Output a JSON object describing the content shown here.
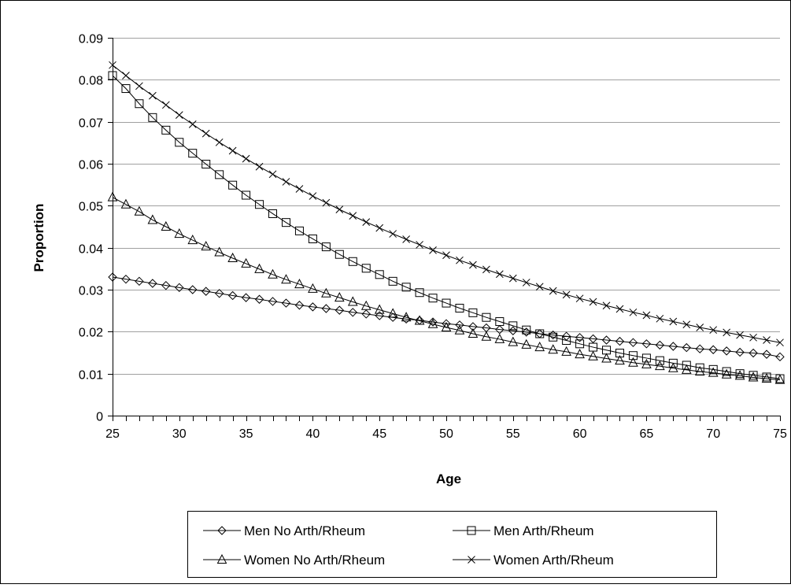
{
  "chart_data": {
    "type": "line",
    "title": "",
    "xlabel": "Age",
    "ylabel": "Proportion",
    "xlim": [
      25,
      75
    ],
    "ylim": [
      0,
      0.09
    ],
    "x_ticks": [
      "25",
      "30",
      "35",
      "40",
      "45",
      "50",
      "55",
      "60",
      "65",
      "70",
      "75"
    ],
    "y_ticks": [
      "0",
      "0.01",
      "0.02",
      "0.03",
      "0.04",
      "0.05",
      "0.06",
      "0.07",
      "0.08",
      "0.09"
    ],
    "grid": "horizontal",
    "legend_position": "bottom",
    "x": [
      25,
      26,
      27,
      28,
      29,
      30,
      31,
      32,
      33,
      34,
      35,
      36,
      37,
      38,
      39,
      40,
      41,
      42,
      43,
      44,
      45,
      46,
      47,
      48,
      49,
      50,
      51,
      52,
      53,
      54,
      55,
      56,
      57,
      58,
      59,
      60,
      61,
      62,
      63,
      64,
      65,
      66,
      67,
      68,
      69,
      70,
      71,
      72,
      73,
      74,
      75
    ],
    "series": [
      {
        "name": "Men No Arth/Rheum",
        "marker": "diamond",
        "values": [
          0.033,
          0.0325,
          0.032,
          0.0315,
          0.031,
          0.0305,
          0.03,
          0.0296,
          0.0291,
          0.0286,
          0.0281,
          0.0277,
          0.0272,
          0.0268,
          0.0263,
          0.0259,
          0.0255,
          0.0251,
          0.0246,
          0.0242,
          0.0238,
          0.0234,
          0.023,
          0.0227,
          0.0223,
          0.0219,
          0.0216,
          0.0212,
          0.0209,
          0.0205,
          0.0202,
          0.0199,
          0.0195,
          0.0192,
          0.0189,
          0.0186,
          0.0183,
          0.018,
          0.0177,
          0.0174,
          0.0171,
          0.0168,
          0.0165,
          0.0162,
          0.0159,
          0.0157,
          0.0154,
          0.0151,
          0.0149,
          0.0146,
          0.014
        ]
      },
      {
        "name": "Men Arth/Rheum",
        "marker": "square",
        "values": [
          0.081,
          0.0779,
          0.0743,
          0.071,
          0.068,
          0.0651,
          0.0625,
          0.0599,
          0.0574,
          0.0549,
          0.0525,
          0.0503,
          0.0481,
          0.046,
          0.044,
          0.0421,
          0.0402,
          0.0384,
          0.0367,
          0.0351,
          0.0336,
          0.032,
          0.0306,
          0.0293,
          0.028,
          0.0268,
          0.0256,
          0.0245,
          0.0234,
          0.0224,
          0.0214,
          0.0204,
          0.0195,
          0.0187,
          0.0179,
          0.0171,
          0.0163,
          0.0156,
          0.0149,
          0.0143,
          0.0137,
          0.0131,
          0.0125,
          0.012,
          0.0114,
          0.011,
          0.0105,
          0.01,
          0.0096,
          0.0092,
          0.0088
        ]
      },
      {
        "name": "Women No Arth/Rheum",
        "marker": "triangle",
        "values": [
          0.052,
          0.0503,
          0.0486,
          0.0466,
          0.045,
          0.0433,
          0.0418,
          0.0403,
          0.0389,
          0.0375,
          0.0362,
          0.0349,
          0.0336,
          0.0324,
          0.0313,
          0.0302,
          0.0291,
          0.0281,
          0.0271,
          0.0261,
          0.0252,
          0.0243,
          0.0234,
          0.0226,
          0.0218,
          0.021,
          0.0203,
          0.0195,
          0.0188,
          0.0182,
          0.0175,
          0.0169,
          0.0163,
          0.0157,
          0.0152,
          0.0146,
          0.0141,
          0.0136,
          0.0131,
          0.0126,
          0.0122,
          0.0118,
          0.0113,
          0.0109,
          0.0105,
          0.0102,
          0.0098,
          0.0095,
          0.0091,
          0.0088,
          0.0085
        ]
      },
      {
        "name": "Women Arth/Rheum",
        "marker": "x",
        "values": [
          0.0835,
          0.081,
          0.0785,
          0.0762,
          0.074,
          0.0716,
          0.0694,
          0.0672,
          0.0651,
          0.0631,
          0.0612,
          0.0593,
          0.0575,
          0.0557,
          0.054,
          0.0523,
          0.0507,
          0.0491,
          0.0476,
          0.0461,
          0.0447,
          0.0433,
          0.042,
          0.0407,
          0.0394,
          0.0382,
          0.037,
          0.0359,
          0.0348,
          0.0337,
          0.0327,
          0.0317,
          0.0307,
          0.0297,
          0.0288,
          0.0279,
          0.0271,
          0.0262,
          0.0254,
          0.0246,
          0.0239,
          0.0231,
          0.0224,
          0.0217,
          0.021,
          0.0204,
          0.0198,
          0.0192,
          0.0186,
          0.018,
          0.0174
        ]
      }
    ]
  }
}
